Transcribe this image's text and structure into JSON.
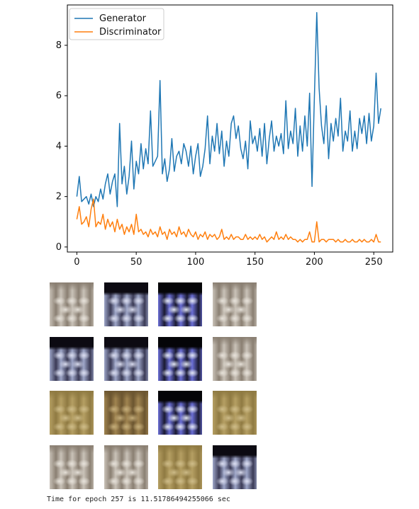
{
  "output": {
    "status_text": "Time for epoch 257 is 11.51786494255066 sec"
  },
  "chart_data": {
    "type": "line",
    "title": "",
    "xlabel": "",
    "ylabel": "",
    "xlim": [
      -8,
      266
    ],
    "ylim": [
      -0.2,
      9.6
    ],
    "x_ticks": [
      0,
      50,
      100,
      150,
      200,
      250
    ],
    "x_tick_labels": [
      "0",
      "50",
      "100",
      "150",
      "200",
      "250"
    ],
    "y_ticks": [
      0,
      2,
      4,
      6,
      8
    ],
    "y_tick_labels": [
      "0",
      "2",
      "4",
      "6",
      "8"
    ],
    "grid": false,
    "legend": "upper-left",
    "series": [
      {
        "name": "Generator",
        "color": "#1f77b4",
        "x": [
          0,
          2,
          4,
          6,
          8,
          10,
          12,
          14,
          16,
          18,
          20,
          22,
          24,
          26,
          28,
          30,
          32,
          34,
          36,
          38,
          40,
          42,
          44,
          46,
          48,
          50,
          52,
          54,
          56,
          58,
          60,
          62,
          64,
          66,
          68,
          70,
          72,
          74,
          76,
          78,
          80,
          82,
          84,
          86,
          88,
          90,
          92,
          94,
          96,
          98,
          100,
          102,
          104,
          106,
          108,
          110,
          112,
          114,
          116,
          118,
          120,
          122,
          124,
          126,
          128,
          130,
          132,
          134,
          136,
          138,
          140,
          142,
          144,
          146,
          148,
          150,
          152,
          154,
          156,
          158,
          160,
          162,
          164,
          166,
          168,
          170,
          172,
          174,
          176,
          178,
          180,
          182,
          184,
          186,
          188,
          190,
          192,
          194,
          196,
          198,
          200,
          202,
          204,
          206,
          208,
          210,
          212,
          214,
          216,
          218,
          220,
          222,
          224,
          226,
          228,
          230,
          232,
          234,
          236,
          238,
          240,
          242,
          244,
          246,
          248,
          250,
          252,
          254,
          256
        ],
        "values": [
          2.0,
          2.8,
          1.8,
          1.9,
          2.0,
          1.7,
          2.1,
          1.6,
          2.0,
          1.8,
          2.3,
          1.9,
          2.5,
          2.9,
          2.1,
          2.6,
          2.9,
          1.6,
          4.9,
          2.5,
          3.2,
          2.1,
          2.8,
          4.2,
          2.3,
          3.4,
          2.9,
          4.1,
          3.1,
          3.9,
          3.3,
          5.4,
          3.2,
          3.4,
          3.6,
          6.6,
          2.9,
          3.5,
          2.6,
          3.1,
          4.3,
          3.0,
          3.6,
          3.8,
          3.3,
          4.1,
          3.8,
          3.2,
          4.0,
          2.9,
          3.6,
          4.1,
          2.8,
          3.2,
          3.9,
          5.2,
          3.3,
          4.4,
          3.8,
          4.9,
          3.7,
          4.6,
          3.2,
          4.2,
          3.6,
          4.9,
          5.2,
          4.3,
          4.8,
          3.9,
          3.5,
          4.2,
          3.1,
          5.0,
          4.1,
          4.4,
          3.8,
          4.7,
          3.6,
          4.9,
          3.3,
          4.3,
          5.0,
          3.8,
          4.4,
          4.0,
          4.5,
          3.7,
          5.8,
          3.9,
          4.6,
          4.1,
          5.5,
          3.6,
          4.8,
          3.8,
          5.2,
          4.0,
          6.1,
          2.4,
          5.9,
          9.3,
          6.3,
          4.8,
          4.1,
          5.6,
          3.5,
          4.9,
          4.2,
          5.1,
          4.4,
          5.9,
          3.8,
          4.6,
          4.2,
          5.4,
          3.8,
          4.6,
          3.9,
          5.1,
          4.5,
          5.2,
          4.1,
          5.3,
          4.2,
          4.8,
          6.9,
          4.9,
          5.5
        ]
      },
      {
        "name": "Discriminator",
        "color": "#ff7f0e",
        "x": [
          0,
          2,
          4,
          6,
          8,
          10,
          12,
          14,
          16,
          18,
          20,
          22,
          24,
          26,
          28,
          30,
          32,
          34,
          36,
          38,
          40,
          42,
          44,
          46,
          48,
          50,
          52,
          54,
          56,
          58,
          60,
          62,
          64,
          66,
          68,
          70,
          72,
          74,
          76,
          78,
          80,
          82,
          84,
          86,
          88,
          90,
          92,
          94,
          96,
          98,
          100,
          102,
          104,
          106,
          108,
          110,
          112,
          114,
          116,
          118,
          120,
          122,
          124,
          126,
          128,
          130,
          132,
          134,
          136,
          138,
          140,
          142,
          144,
          146,
          148,
          150,
          152,
          154,
          156,
          158,
          160,
          162,
          164,
          166,
          168,
          170,
          172,
          174,
          176,
          178,
          180,
          182,
          184,
          186,
          188,
          190,
          192,
          194,
          196,
          198,
          200,
          202,
          204,
          206,
          208,
          210,
          212,
          214,
          216,
          218,
          220,
          222,
          224,
          226,
          228,
          230,
          232,
          234,
          236,
          238,
          240,
          242,
          244,
          246,
          248,
          250,
          252,
          254,
          256
        ],
        "values": [
          1.1,
          1.6,
          0.9,
          1.0,
          1.2,
          0.8,
          1.5,
          1.9,
          0.8,
          1.0,
          0.9,
          1.3,
          0.7,
          1.1,
          0.8,
          1.0,
          0.6,
          1.1,
          0.7,
          0.9,
          0.5,
          0.8,
          0.6,
          0.9,
          0.5,
          1.3,
          0.6,
          0.7,
          0.5,
          0.6,
          0.4,
          0.7,
          0.5,
          0.6,
          0.4,
          0.8,
          0.5,
          0.6,
          0.3,
          0.7,
          0.5,
          0.6,
          0.4,
          0.8,
          0.5,
          0.6,
          0.4,
          0.7,
          0.5,
          0.4,
          0.6,
          0.3,
          0.5,
          0.4,
          0.6,
          0.3,
          0.5,
          0.4,
          0.5,
          0.3,
          0.4,
          0.7,
          0.3,
          0.4,
          0.3,
          0.5,
          0.3,
          0.4,
          0.4,
          0.3,
          0.3,
          0.5,
          0.3,
          0.4,
          0.3,
          0.4,
          0.3,
          0.5,
          0.3,
          0.4,
          0.2,
          0.3,
          0.4,
          0.3,
          0.6,
          0.3,
          0.4,
          0.3,
          0.5,
          0.3,
          0.4,
          0.3,
          0.3,
          0.2,
          0.3,
          0.2,
          0.3,
          0.3,
          0.6,
          0.2,
          0.2,
          1.0,
          0.2,
          0.3,
          0.3,
          0.2,
          0.3,
          0.3,
          0.3,
          0.2,
          0.3,
          0.2,
          0.2,
          0.3,
          0.2,
          0.2,
          0.3,
          0.2,
          0.2,
          0.3,
          0.2,
          0.3,
          0.2,
          0.2,
          0.3,
          0.2,
          0.5,
          0.2,
          0.2
        ]
      }
    ]
  },
  "samples": {
    "rows": 4,
    "cols": 4,
    "palettes": {
      "light": [
        "#4a4038",
        "#8a7f72",
        "#c9c2b8",
        "#e6e1d9"
      ],
      "blue": [
        "#0c0a12",
        "#3a3a55",
        "#9ea6c8",
        "#d9dcef"
      ],
      "dark": [
        "#050508",
        "#1a1a30",
        "#6b6fd6",
        "#e0e4f2"
      ],
      "tan": [
        "#5a4a22",
        "#8f7a42",
        "#b59f63",
        "#cdbb88"
      ],
      "darktan": [
        "#2d2414",
        "#6b5530",
        "#a08450",
        "#c4ad7a"
      ]
    },
    "tiles": [
      {
        "id": "sample-1-1",
        "palette": "light",
        "dark_top": false
      },
      {
        "id": "sample-1-2",
        "palette": "blue",
        "dark_top": true
      },
      {
        "id": "sample-1-3",
        "palette": "dark",
        "dark_top": true
      },
      {
        "id": "sample-1-4",
        "palette": "light",
        "dark_top": false
      },
      {
        "id": "sample-2-1",
        "palette": "blue",
        "dark_top": true
      },
      {
        "id": "sample-2-2",
        "palette": "blue",
        "dark_top": true
      },
      {
        "id": "sample-2-3",
        "palette": "dark",
        "dark_top": true
      },
      {
        "id": "sample-2-4",
        "palette": "light",
        "dark_top": false
      },
      {
        "id": "sample-3-1",
        "palette": "tan",
        "dark_top": false
      },
      {
        "id": "sample-3-2",
        "palette": "darktan",
        "dark_top": false
      },
      {
        "id": "sample-3-3",
        "palette": "dark",
        "dark_top": true
      },
      {
        "id": "sample-3-4",
        "palette": "tan",
        "dark_top": false
      },
      {
        "id": "sample-4-1",
        "palette": "light",
        "dark_top": false
      },
      {
        "id": "sample-4-2",
        "palette": "light",
        "dark_top": false
      },
      {
        "id": "sample-4-3",
        "palette": "tan",
        "dark_top": false
      },
      {
        "id": "sample-4-4",
        "palette": "blue",
        "dark_top": true
      }
    ]
  }
}
